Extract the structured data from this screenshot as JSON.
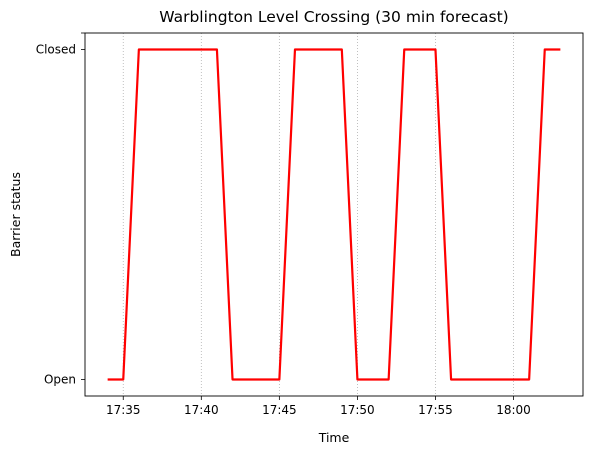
{
  "chart_data": {
    "type": "line",
    "title": "Warblington Level Crossing (30 min forecast)",
    "xlabel": "Time",
    "ylabel": "Barrier status",
    "x_ticks": [
      "17:35",
      "17:40",
      "17:45",
      "17:50",
      "17:55",
      "18:00"
    ],
    "y_ticks": [
      "Open",
      "Closed"
    ],
    "grid": "vertical dotted lines at x ticks",
    "series": [
      {
        "color": "#ff0000",
        "x": [
          "17:34",
          "17:35",
          "17:36",
          "17:41",
          "17:42",
          "17:45",
          "17:46",
          "17:49",
          "17:50",
          "17:52",
          "17:53",
          "17:55",
          "17:56",
          "18:01",
          "18:02",
          "18:03"
        ],
        "values": [
          "Open",
          "Open",
          "Closed",
          "Closed",
          "Open",
          "Open",
          "Closed",
          "Closed",
          "Open",
          "Open",
          "Closed",
          "Closed",
          "Open",
          "Open",
          "Closed",
          "Closed"
        ]
      }
    ]
  }
}
